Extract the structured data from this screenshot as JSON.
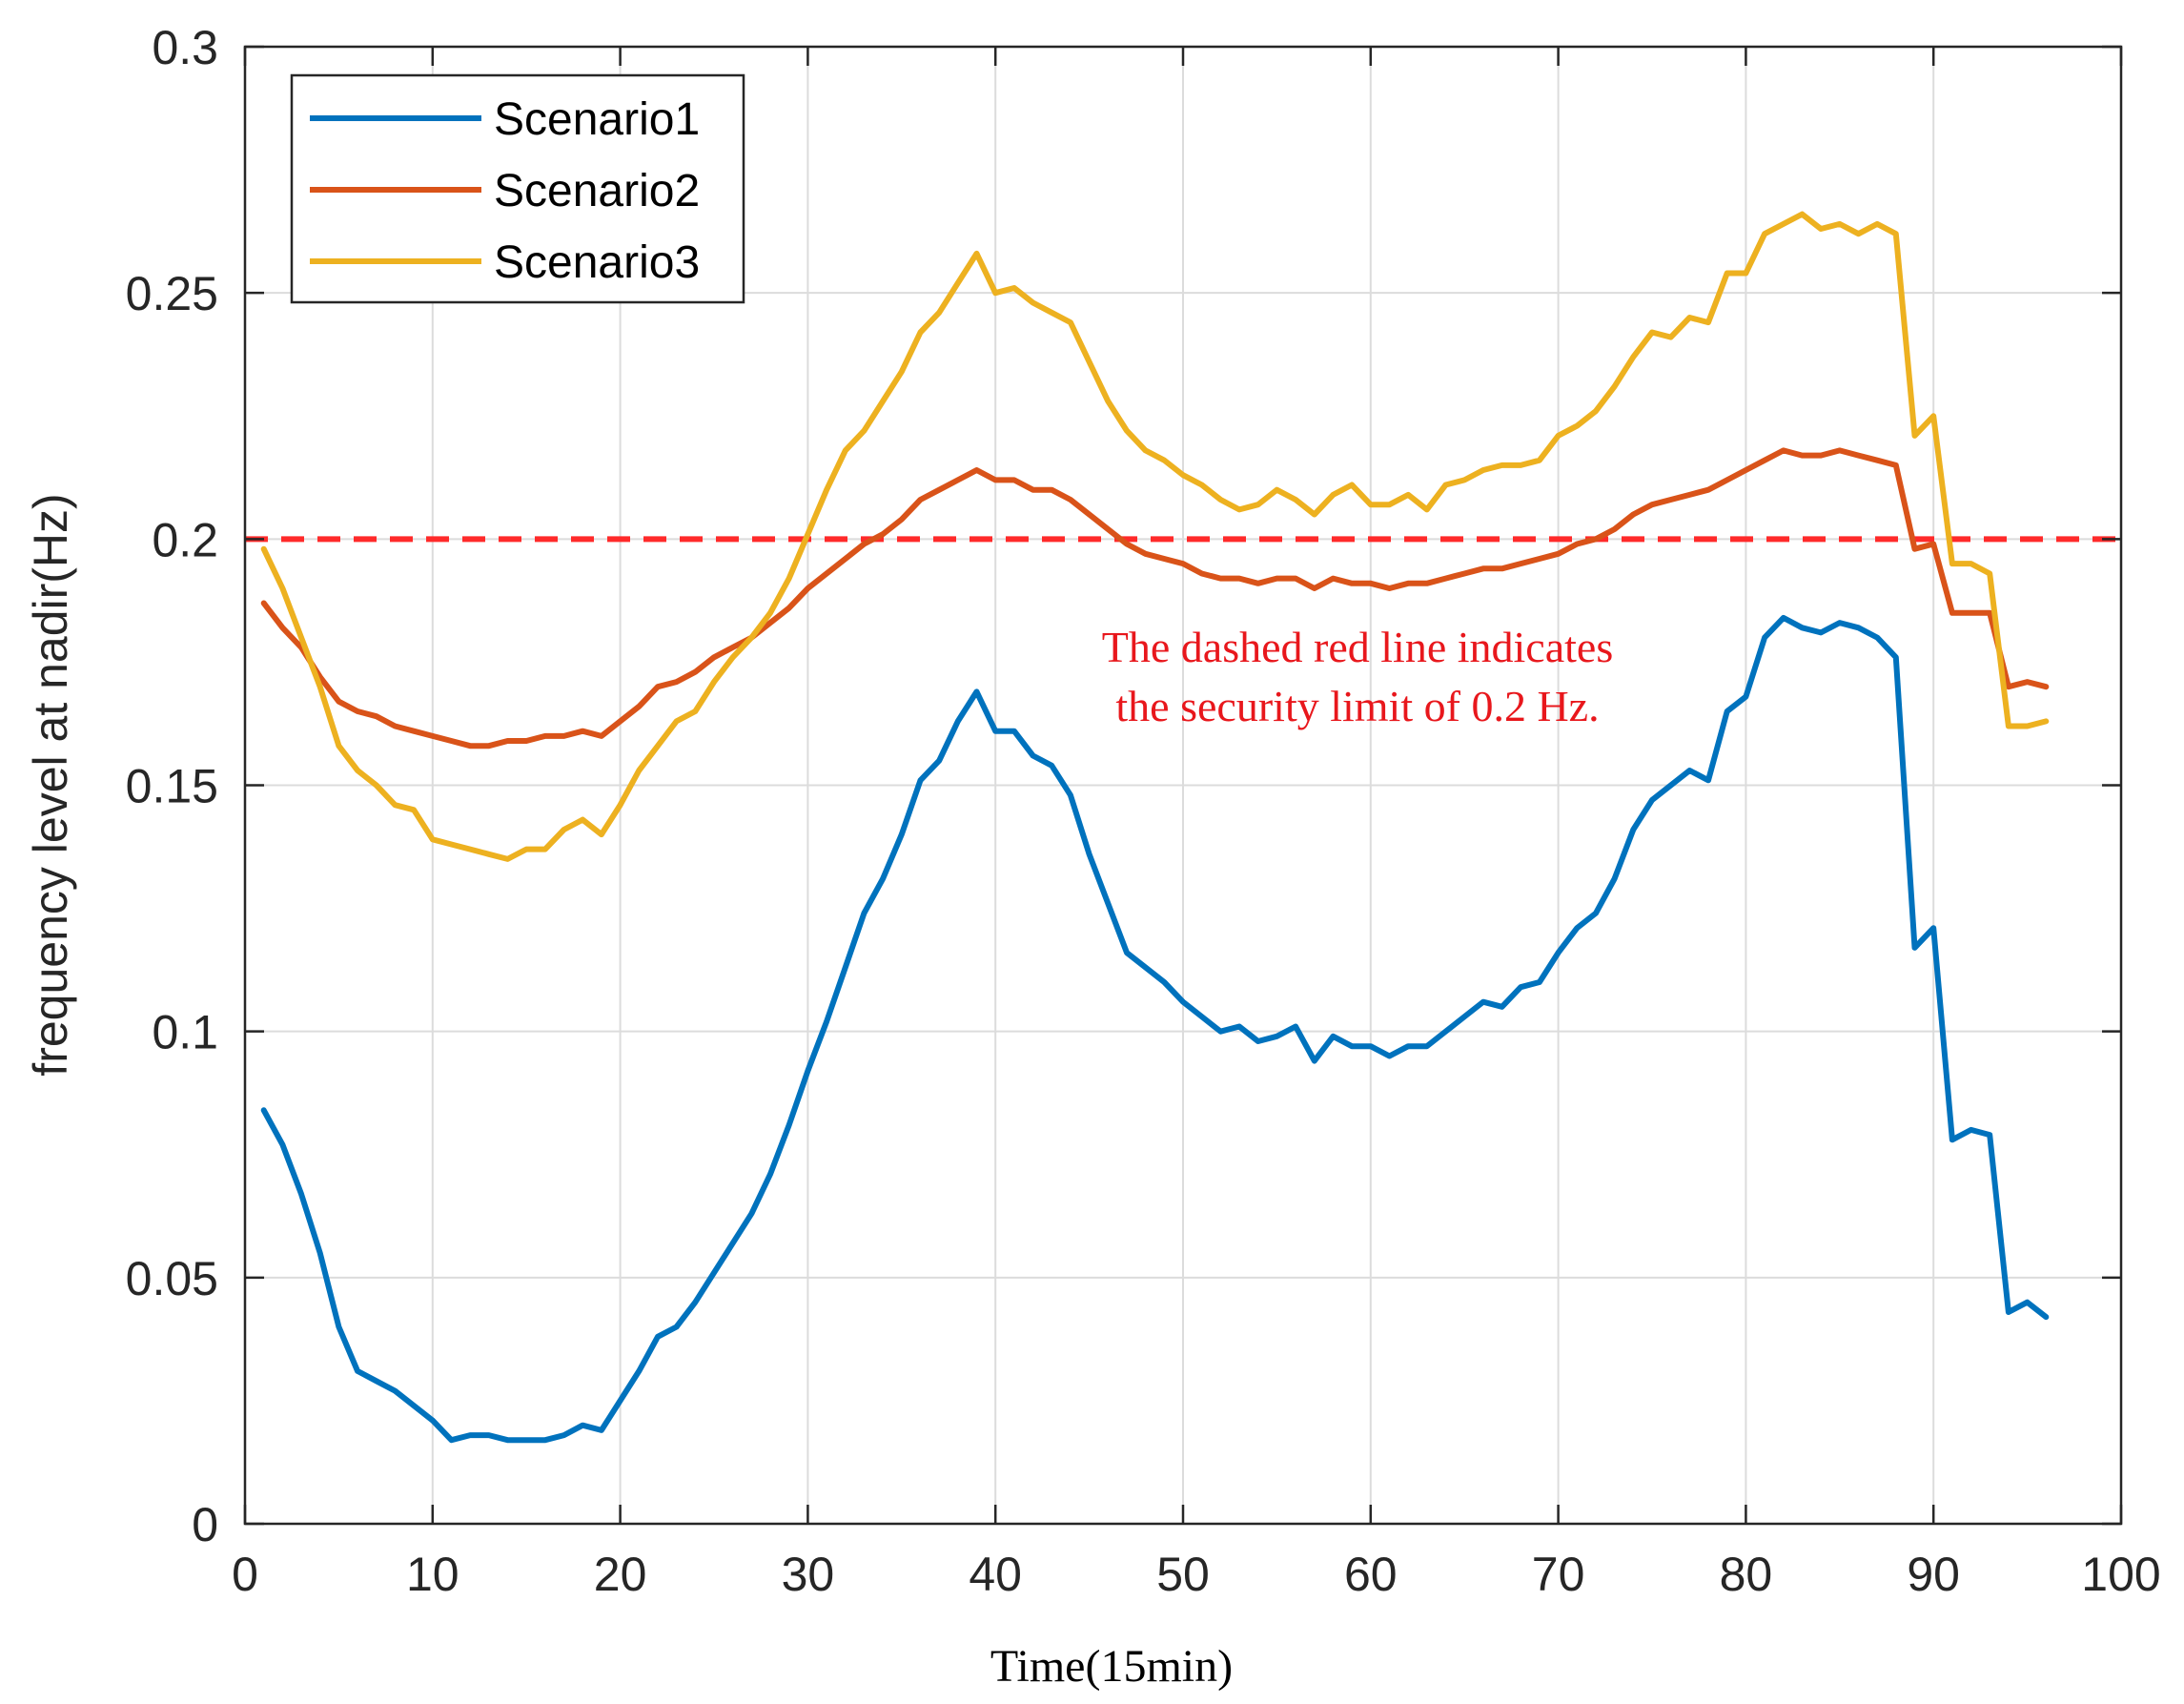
{
  "chart_data": {
    "type": "line",
    "title": "",
    "xlabel": "Time(15min)",
    "ylabel": "frequency level at nadir(Hz)",
    "xlim": [
      0,
      100
    ],
    "ylim": [
      0,
      0.3
    ],
    "xticks": [
      0,
      10,
      20,
      30,
      40,
      50,
      60,
      70,
      80,
      90,
      100
    ],
    "yticks": [
      0,
      0.05,
      0.1,
      0.15,
      0.2,
      0.25,
      0.3
    ],
    "xtick_labels": [
      "0",
      "10",
      "20",
      "30",
      "40",
      "50",
      "60",
      "70",
      "80",
      "90",
      "100"
    ],
    "ytick_labels": [
      "0",
      "0.05",
      "0.1",
      "0.15",
      "0.2",
      "0.25",
      "0.3"
    ],
    "grid": true,
    "legend_position": "top-left",
    "threshold": {
      "value": 0.2,
      "style": "dashed",
      "color": "#ff2a2a"
    },
    "annotation": {
      "lines": [
        "The dashed red line indicates",
        "the security limit of 0.2 Hz."
      ],
      "color": "#e8171c"
    },
    "series": [
      {
        "name": "Scenario1",
        "color": "#0072bd",
        "x": [
          1,
          2,
          3,
          4,
          5,
          6,
          7,
          8,
          9,
          10,
          11,
          12,
          13,
          14,
          15,
          16,
          17,
          18,
          19,
          20,
          21,
          22,
          23,
          24,
          25,
          26,
          27,
          28,
          29,
          30,
          31,
          32,
          33,
          34,
          35,
          36,
          37,
          38,
          39,
          40,
          41,
          42,
          43,
          44,
          45,
          46,
          47,
          48,
          49,
          50,
          51,
          52,
          53,
          54,
          55,
          56,
          57,
          58,
          59,
          60,
          61,
          62,
          63,
          64,
          65,
          66,
          67,
          68,
          69,
          70,
          71,
          72,
          73,
          74,
          75,
          76,
          77,
          78,
          79,
          80,
          81,
          82,
          83,
          84,
          85,
          86,
          87,
          88,
          89,
          90,
          91,
          92,
          93,
          94,
          95,
          96
        ],
        "values": [
          0.084,
          0.077,
          0.067,
          0.055,
          0.04,
          0.031,
          0.029,
          0.027,
          0.024,
          0.021,
          0.017,
          0.018,
          0.018,
          0.017,
          0.017,
          0.017,
          0.018,
          0.02,
          0.019,
          0.025,
          0.031,
          0.038,
          0.04,
          0.045,
          0.051,
          0.057,
          0.063,
          0.071,
          0.081,
          0.092,
          0.102,
          0.113,
          0.124,
          0.131,
          0.14,
          0.151,
          0.155,
          0.163,
          0.169,
          0.161,
          0.161,
          0.156,
          0.154,
          0.148,
          0.136,
          0.126,
          0.116,
          0.113,
          0.11,
          0.106,
          0.103,
          0.1,
          0.101,
          0.098,
          0.099,
          0.101,
          0.094,
          0.099,
          0.097,
          0.097,
          0.095,
          0.097,
          0.097,
          0.1,
          0.103,
          0.106,
          0.105,
          0.109,
          0.11,
          0.116,
          0.121,
          0.124,
          0.131,
          0.141,
          0.147,
          0.15,
          0.153,
          0.151,
          0.165,
          0.168,
          0.18,
          0.184,
          0.182,
          0.181,
          0.183,
          0.182,
          0.18,
          0.176,
          0.117,
          0.121,
          0.078,
          0.08,
          0.079,
          0.043,
          0.045,
          0.042
        ]
      },
      {
        "name": "Scenario2",
        "color": "#d95319",
        "x": [
          1,
          2,
          3,
          4,
          5,
          6,
          7,
          8,
          9,
          10,
          11,
          12,
          13,
          14,
          15,
          16,
          17,
          18,
          19,
          20,
          21,
          22,
          23,
          24,
          25,
          26,
          27,
          28,
          29,
          30,
          31,
          32,
          33,
          34,
          35,
          36,
          37,
          38,
          39,
          40,
          41,
          42,
          43,
          44,
          45,
          46,
          47,
          48,
          49,
          50,
          51,
          52,
          53,
          54,
          55,
          56,
          57,
          58,
          59,
          60,
          61,
          62,
          63,
          64,
          65,
          66,
          67,
          68,
          69,
          70,
          71,
          72,
          73,
          74,
          75,
          76,
          77,
          78,
          79,
          80,
          81,
          82,
          83,
          84,
          85,
          86,
          87,
          88,
          89,
          90,
          91,
          92,
          93,
          94,
          95,
          96
        ],
        "values": [
          0.187,
          0.182,
          0.178,
          0.172,
          0.167,
          0.165,
          0.164,
          0.162,
          0.161,
          0.16,
          0.159,
          0.158,
          0.158,
          0.159,
          0.159,
          0.16,
          0.16,
          0.161,
          0.16,
          0.163,
          0.166,
          0.17,
          0.171,
          0.173,
          0.176,
          0.178,
          0.18,
          0.183,
          0.186,
          0.19,
          0.193,
          0.196,
          0.199,
          0.201,
          0.204,
          0.208,
          0.21,
          0.212,
          0.214,
          0.212,
          0.212,
          0.21,
          0.21,
          0.208,
          0.205,
          0.202,
          0.199,
          0.197,
          0.196,
          0.195,
          0.193,
          0.192,
          0.192,
          0.191,
          0.192,
          0.192,
          0.19,
          0.192,
          0.191,
          0.191,
          0.19,
          0.191,
          0.191,
          0.192,
          0.193,
          0.194,
          0.194,
          0.195,
          0.196,
          0.197,
          0.199,
          0.2,
          0.202,
          0.205,
          0.207,
          0.208,
          0.209,
          0.21,
          0.212,
          0.214,
          0.216,
          0.218,
          0.217,
          0.217,
          0.218,
          0.217,
          0.216,
          0.215,
          0.198,
          0.199,
          0.185,
          0.185,
          0.185,
          0.17,
          0.171,
          0.17
        ]
      },
      {
        "name": "Scenario3",
        "color": "#edb120",
        "x": [
          1,
          2,
          3,
          4,
          5,
          6,
          7,
          8,
          9,
          10,
          11,
          12,
          13,
          14,
          15,
          16,
          17,
          18,
          19,
          20,
          21,
          22,
          23,
          24,
          25,
          26,
          27,
          28,
          29,
          30,
          31,
          32,
          33,
          34,
          35,
          36,
          37,
          38,
          39,
          40,
          41,
          42,
          43,
          44,
          45,
          46,
          47,
          48,
          49,
          50,
          51,
          52,
          53,
          54,
          55,
          56,
          57,
          58,
          59,
          60,
          61,
          62,
          63,
          64,
          65,
          66,
          67,
          68,
          69,
          70,
          71,
          72,
          73,
          74,
          75,
          76,
          77,
          78,
          79,
          80,
          81,
          82,
          83,
          84,
          85,
          86,
          87,
          88,
          89,
          90,
          91,
          92,
          93,
          94,
          95,
          96
        ],
        "values": [
          0.198,
          0.19,
          0.18,
          0.17,
          0.158,
          0.153,
          0.15,
          0.146,
          0.145,
          0.139,
          0.138,
          0.137,
          0.136,
          0.135,
          0.137,
          0.137,
          0.141,
          0.143,
          0.14,
          0.146,
          0.153,
          0.158,
          0.163,
          0.165,
          0.171,
          0.176,
          0.18,
          0.185,
          0.192,
          0.201,
          0.21,
          0.218,
          0.222,
          0.228,
          0.234,
          0.242,
          0.246,
          0.252,
          0.258,
          0.25,
          0.251,
          0.248,
          0.246,
          0.244,
          0.236,
          0.228,
          0.222,
          0.218,
          0.216,
          0.213,
          0.211,
          0.208,
          0.206,
          0.207,
          0.21,
          0.208,
          0.205,
          0.209,
          0.211,
          0.207,
          0.207,
          0.209,
          0.206,
          0.211,
          0.212,
          0.214,
          0.215,
          0.215,
          0.216,
          0.221,
          0.223,
          0.226,
          0.231,
          0.237,
          0.242,
          0.241,
          0.245,
          0.244,
          0.254,
          0.254,
          0.262,
          0.264,
          0.266,
          0.263,
          0.264,
          0.262,
          0.264,
          0.262,
          0.221,
          0.225,
          0.195,
          0.195,
          0.193,
          0.162,
          0.162,
          0.163
        ]
      }
    ]
  }
}
